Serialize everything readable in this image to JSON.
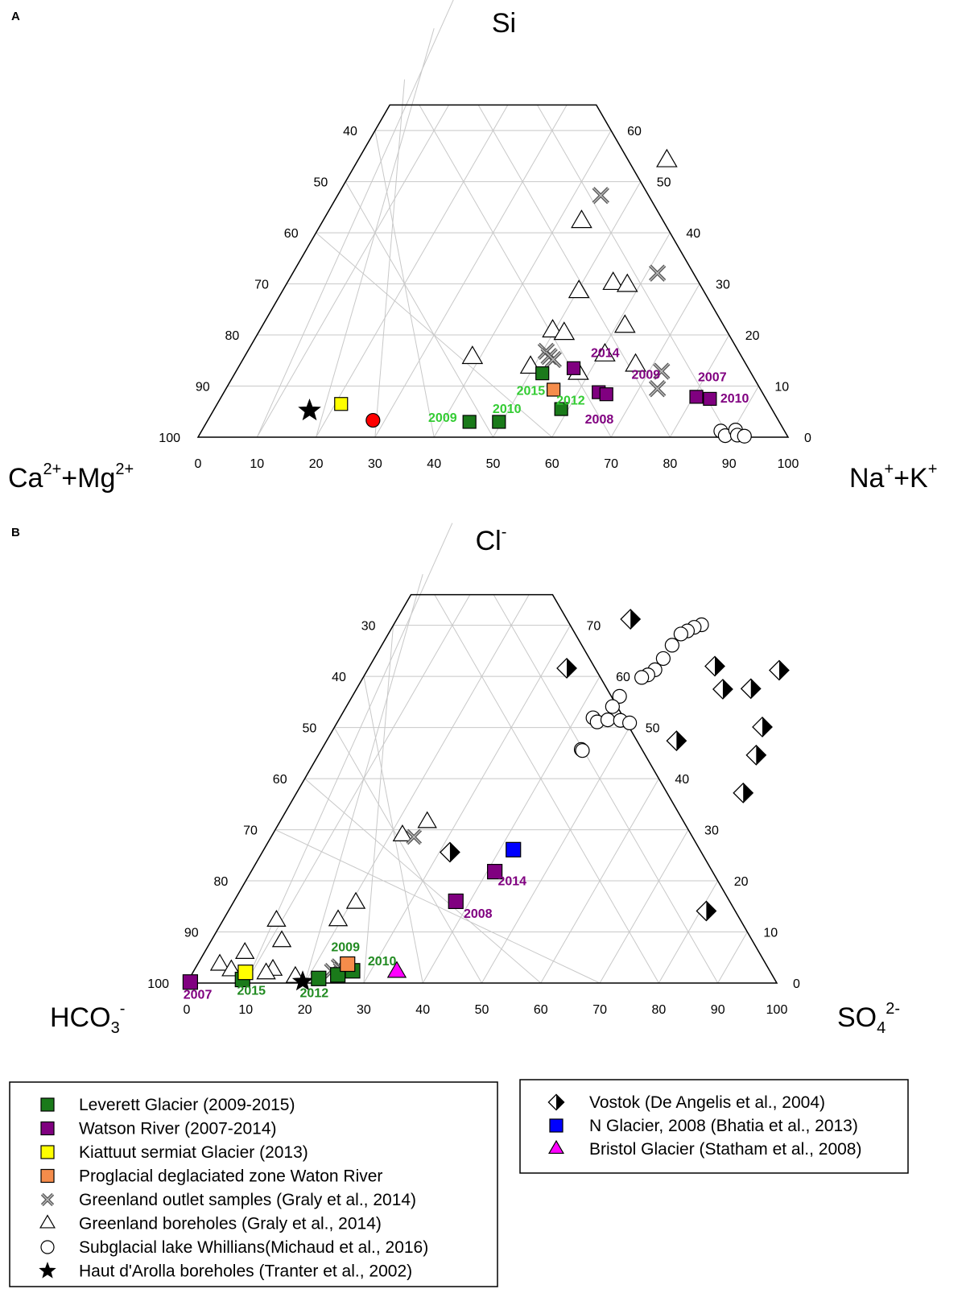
{
  "colors": {
    "leverett": "#1a7a1a",
    "watson": "#800080",
    "kiattuut": "#ffff00",
    "proglacial": "#f58c4b",
    "n_glacier": "#0000ff",
    "bristol": "#ff00ff",
    "red_point": "#ff0000",
    "ann_green": "#33cc33",
    "ann_green_b": "#228b22",
    "ann_purple": "#800080",
    "grid": "#c8c8c8"
  },
  "legend_left": [
    {
      "marker": "square",
      "color": "#1a7a1a",
      "label": "Leverett Glacier (2009-2015)"
    },
    {
      "marker": "square",
      "color": "#800080",
      "label": "Watson River (2007-2014)"
    },
    {
      "marker": "square",
      "color": "#ffff00",
      "label": "Kiattuut sermiat Glacier (2013)"
    },
    {
      "marker": "square",
      "color": "#f58c4b",
      "label": "Proglacial deglaciated zone Waton River"
    },
    {
      "marker": "cross",
      "color": "#666666",
      "label": "Greenland outlet samples (Graly et al., 2014)"
    },
    {
      "marker": "triangle",
      "color": "#ffffff",
      "label": "Greenland boreholes (Graly et al., 2014)"
    },
    {
      "marker": "circle",
      "color": "#ffffff",
      "label": "Subglacial lake Whillians(Michaud et al., 2016)"
    },
    {
      "marker": "star",
      "color": "#000000",
      "label": "Haut d'Arolla boreholes (Tranter et al., 2002)"
    }
  ],
  "legend_right": [
    {
      "marker": "halfdiamond",
      "color": "#000000",
      "label": "Vostok (De Angelis et al., 2004)"
    },
    {
      "marker": "square",
      "color": "#0000ff",
      "label": "N Glacier, 2008 (Bhatia et al., 2013)"
    },
    {
      "marker": "triangle",
      "color": "#ff00ff",
      "label": "Bristol Glacier (Statham et al., 2008)"
    }
  ],
  "chart_data": [
    {
      "type": "scatter",
      "panel": "A",
      "title": "Si",
      "left_label": {
        "main": "Ca",
        "sup1": "2+",
        "mid": "+Mg",
        "sup2": "2+"
      },
      "right_label": {
        "main": "Na",
        "sup1": "+",
        "mid": "+K",
        "sup2": "+"
      },
      "coords": "ternary truncated at apex: x = Na++K+ (%), h = Si (%)",
      "h_max": 65,
      "bottom_ticks": [
        0,
        10,
        20,
        30,
        40,
        50,
        60,
        70,
        80,
        90,
        100
      ],
      "left_ticks": [
        40,
        50,
        60,
        70,
        80,
        90,
        100
      ],
      "right_ticks": [
        0,
        10,
        20,
        30,
        40,
        50,
        60
      ],
      "points": [
        {
          "m": "square",
          "c": "#1a7a1a",
          "x": 44.5,
          "h": 3
        },
        {
          "m": "square",
          "c": "#1a7a1a",
          "x": 49.5,
          "h": 3
        },
        {
          "m": "square",
          "c": "#1a7a1a",
          "x": 58.8,
          "h": 5.5
        },
        {
          "m": "square",
          "c": "#1a7a1a",
          "x": 52.1,
          "h": 12.5
        },
        {
          "m": "square",
          "c": "#800080",
          "x": 56.9,
          "h": 13.5
        },
        {
          "m": "square",
          "c": "#800080",
          "x": 63.5,
          "h": 8.8
        },
        {
          "m": "square",
          "c": "#800080",
          "x": 65,
          "h": 8.4
        },
        {
          "m": "square",
          "c": "#800080",
          "x": 80.5,
          "h": 7.9
        },
        {
          "m": "square",
          "c": "#800080",
          "x": 83,
          "h": 7.5
        },
        {
          "m": "square",
          "c": "#f58c4b",
          "x": 55.6,
          "h": 9.3
        },
        {
          "m": "square",
          "c": "#ffff00",
          "x": 21,
          "h": 6.5
        },
        {
          "m": "circle",
          "c": "#ff0000",
          "x": 28,
          "h": 3.3
        },
        {
          "m": "star",
          "c": "#000000",
          "x": 16.3,
          "h": 5.2
        },
        {
          "m": "cross",
          "c": "#666666",
          "x": 44.6,
          "h": 47.3
        },
        {
          "m": "cross",
          "c": "#666666",
          "x": 61.8,
          "h": 32.1
        },
        {
          "m": "cross",
          "c": "#666666",
          "x": 72.1,
          "h": 12.9
        },
        {
          "m": "cross",
          "c": "#666666",
          "x": 73.1,
          "h": 9.5
        },
        {
          "m": "cross",
          "c": "#666666",
          "x": 50.6,
          "h": 16.8
        },
        {
          "m": "cross",
          "c": "#666666",
          "x": 51.6,
          "h": 15.8
        },
        {
          "m": "cross",
          "c": "#666666",
          "x": 52.6,
          "h": 15.2
        },
        {
          "m": "triangle",
          "c": "#ffffff",
          "x": 52.4,
          "h": 54.1
        },
        {
          "m": "triangle",
          "c": "#ffffff",
          "x": 43.9,
          "h": 42.2
        },
        {
          "m": "triangle",
          "c": "#ffffff",
          "x": 55.3,
          "h": 30.1
        },
        {
          "m": "triangle",
          "c": "#ffffff",
          "x": 57.9,
          "h": 29.7
        },
        {
          "m": "triangle",
          "c": "#ffffff",
          "x": 50.3,
          "h": 28.5
        },
        {
          "m": "triangle",
          "c": "#ffffff",
          "x": 49.7,
          "h": 20.8
        },
        {
          "m": "triangle",
          "c": "#ffffff",
          "x": 51.9,
          "h": 20.3
        },
        {
          "m": "triangle",
          "c": "#ffffff",
          "x": 61.5,
          "h": 21.7
        },
        {
          "m": "triangle",
          "c": "#ffffff",
          "x": 38.7,
          "h": 15.6
        },
        {
          "m": "triangle",
          "c": "#ffffff",
          "x": 60.9,
          "h": 16.1
        },
        {
          "m": "triangle",
          "c": "#ffffff",
          "x": 67.1,
          "h": 14.1
        },
        {
          "m": "triangle",
          "c": "#ffffff",
          "x": 49.5,
          "h": 13.7
        },
        {
          "m": "triangle",
          "c": "#ffffff",
          "x": 58.2,
          "h": 12.5
        },
        {
          "m": "circle",
          "c": "#ffffff",
          "x": 88,
          "h": 1.2
        },
        {
          "m": "circle",
          "c": "#ffffff",
          "x": 89.2,
          "h": 0.3
        },
        {
          "m": "circle",
          "c": "#ffffff",
          "x": 90.4,
          "h": 1.4
        },
        {
          "m": "circle",
          "c": "#ffffff",
          "x": 91.2,
          "h": 0.4
        },
        {
          "m": "circle",
          "c": "#ffffff",
          "x": 92.5,
          "h": 0.2
        }
      ],
      "annotations": [
        {
          "text": "2009",
          "c": "#33cc33",
          "x": 39.5,
          "h": 3.9
        },
        {
          "text": "2010",
          "c": "#33cc33",
          "x": 49.5,
          "h": 5.7
        },
        {
          "text": "2015",
          "c": "#33cc33",
          "x": 51.8,
          "h": 9.2
        },
        {
          "text": "2012",
          "c": "#33cc33",
          "x": 59.5,
          "h": 7.3
        },
        {
          "text": "2014",
          "c": "#800080",
          "x": 60.7,
          "h": 16.6
        },
        {
          "text": "2009",
          "c": "#800080",
          "x": 69.7,
          "h": 12.4
        },
        {
          "text": "2008",
          "c": "#800080",
          "x": 66.2,
          "h": 3.6
        },
        {
          "text": "2007",
          "c": "#800080",
          "x": 81.2,
          "h": 11.9
        },
        {
          "text": "2010",
          "c": "#800080",
          "x": 87.1,
          "h": 7.7
        }
      ]
    },
    {
      "type": "scatter",
      "panel": "B",
      "title": "Cl",
      "title_sup": "-",
      "left_label": {
        "main": "HCO",
        "sub": "3",
        "sup": "-"
      },
      "right_label": {
        "main": "SO",
        "sub": "4",
        "sup": "2-"
      },
      "coords": "ternary truncated at apex: x = SO42- (%), h = Cl- (%)",
      "h_max": 76,
      "bottom_ticks": [
        0,
        10,
        20,
        30,
        40,
        50,
        60,
        70,
        80,
        90,
        100
      ],
      "left_ticks": [
        30,
        40,
        50,
        60,
        70,
        80,
        90,
        100
      ],
      "right_ticks": [
        0,
        10,
        20,
        30,
        40,
        50,
        60,
        70
      ],
      "points": [
        {
          "m": "halfdiamond",
          "c": "#000000",
          "x": 39.6,
          "h": 71.2
        },
        {
          "m": "halfdiamond",
          "c": "#000000",
          "x": 33.6,
          "h": 61.6
        },
        {
          "m": "halfdiamond",
          "c": "#000000",
          "x": 58.5,
          "h": 62
        },
        {
          "m": "halfdiamond",
          "c": "#000000",
          "x": 69.8,
          "h": 61.2
        },
        {
          "m": "halfdiamond",
          "c": "#000000",
          "x": 62.1,
          "h": 57.5
        },
        {
          "m": "halfdiamond",
          "c": "#000000",
          "x": 66.8,
          "h": 57.6
        },
        {
          "m": "halfdiamond",
          "c": "#000000",
          "x": 72.5,
          "h": 50.1
        },
        {
          "m": "halfdiamond",
          "c": "#000000",
          "x": 59.3,
          "h": 47.4
        },
        {
          "m": "halfdiamond",
          "c": "#000000",
          "x": 74.2,
          "h": 44.6
        },
        {
          "m": "halfdiamond",
          "c": "#000000",
          "x": 75.7,
          "h": 37.2
        },
        {
          "m": "halfdiamond",
          "c": "#000000",
          "x": 31.8,
          "h": 25.6
        },
        {
          "m": "halfdiamond",
          "c": "#000000",
          "x": 81,
          "h": 14.1
        },
        {
          "m": "square",
          "c": "#0000ff",
          "x": 42.3,
          "h": 26.1
        },
        {
          "m": "square",
          "c": "#800080",
          "x": 41.3,
          "h": 21.8
        },
        {
          "m": "square",
          "c": "#800080",
          "x": 37.6,
          "h": 16
        },
        {
          "m": "square",
          "c": "#800080",
          "x": 0.5,
          "h": 0.2
        },
        {
          "m": "square",
          "c": "#1a7a1a",
          "x": 9.1,
          "h": 0.7
        },
        {
          "m": "square",
          "c": "#1a7a1a",
          "x": 21.9,
          "h": 0.9
        },
        {
          "m": "square",
          "c": "#1a7a1a",
          "x": 24.8,
          "h": 1.6
        },
        {
          "m": "square",
          "c": "#1a7a1a",
          "x": 26.9,
          "h": 2.4
        },
        {
          "m": "square",
          "c": "#f58c4b",
          "x": 25.4,
          "h": 3.7
        },
        {
          "m": "square",
          "c": "#ffff00",
          "x": 8.9,
          "h": 2.1
        },
        {
          "m": "triangle",
          "c": "#ff00ff",
          "x": 34.5,
          "h": 2.2
        },
        {
          "m": "star",
          "c": "#000000",
          "x": 19.5,
          "h": 0.3
        },
        {
          "m": "cross",
          "c": "#666666",
          "x": 24.2,
          "h": 28.6
        },
        {
          "m": "cross",
          "c": "#666666",
          "x": 24.1,
          "h": 3.3
        },
        {
          "m": "cross",
          "c": "#666666",
          "x": 23.4,
          "h": 2.4
        },
        {
          "m": "cross",
          "c": "#666666",
          "x": 24.8,
          "h": 2.6
        },
        {
          "m": "triangle",
          "c": "#ffffff",
          "x": 25,
          "h": 31.5
        },
        {
          "m": "triangle",
          "c": "#ffffff",
          "x": 22.1,
          "h": 28.9
        },
        {
          "m": "triangle",
          "c": "#ffffff",
          "x": 20.8,
          "h": 15.7
        },
        {
          "m": "triangle",
          "c": "#ffffff",
          "x": 19.5,
          "h": 12.3
        },
        {
          "m": "triangle",
          "c": "#ffffff",
          "x": 9.1,
          "h": 12.2
        },
        {
          "m": "triangle",
          "c": "#ffffff",
          "x": 12,
          "h": 8.2
        },
        {
          "m": "triangle",
          "c": "#ffffff",
          "x": 6.9,
          "h": 5.9
        },
        {
          "m": "triangle",
          "c": "#ffffff",
          "x": 3.8,
          "h": 3.6
        },
        {
          "m": "triangle",
          "c": "#ffffff",
          "x": 6.3,
          "h": 2.5
        },
        {
          "m": "triangle",
          "c": "#ffffff",
          "x": 13.3,
          "h": 2.6
        },
        {
          "m": "triangle",
          "c": "#ffffff",
          "x": 12.5,
          "h": 1.9
        },
        {
          "m": "triangle",
          "c": "#ffffff",
          "x": 17.8,
          "h": 1.2
        },
        {
          "m": "circle",
          "c": "#ffffff",
          "x": 52.2,
          "h": 70.1
        },
        {
          "m": "circle",
          "c": "#ffffff",
          "x": 51.2,
          "h": 69.6
        },
        {
          "m": "circle",
          "c": "#ffffff",
          "x": 50.4,
          "h": 68.9
        },
        {
          "m": "circle",
          "c": "#ffffff",
          "x": 49.6,
          "h": 68.3
        },
        {
          "m": "circle",
          "c": "#ffffff",
          "x": 49.2,
          "h": 66.1
        },
        {
          "m": "circle",
          "c": "#ffffff",
          "x": 49,
          "h": 63.5
        },
        {
          "m": "circle",
          "c": "#ffffff",
          "x": 48.7,
          "h": 61.3
        },
        {
          "m": "circle",
          "c": "#ffffff",
          "x": 48,
          "h": 60.3
        },
        {
          "m": "circle",
          "c": "#ffffff",
          "x": 47.2,
          "h": 59.8
        },
        {
          "m": "circle",
          "c": "#ffffff",
          "x": 45.3,
          "h": 56.1
        },
        {
          "m": "circle",
          "c": "#ffffff",
          "x": 45.1,
          "h": 54.1
        },
        {
          "m": "circle",
          "c": "#ffffff",
          "x": 42.9,
          "h": 51.9
        },
        {
          "m": "circle",
          "c": "#ffffff",
          "x": 44,
          "h": 51.1
        },
        {
          "m": "circle",
          "c": "#ffffff",
          "x": 45.6,
          "h": 51.5
        },
        {
          "m": "circle",
          "c": "#ffffff",
          "x": 47.8,
          "h": 51.4
        },
        {
          "m": "circle",
          "c": "#ffffff",
          "x": 49.6,
          "h": 50.9
        },
        {
          "m": "circle",
          "c": "#ffffff",
          "x": 44,
          "h": 45.7
        },
        {
          "m": "circle",
          "c": "#ffffff",
          "x": 44.3,
          "h": 45.5
        }
      ],
      "annotations": [
        {
          "text": "2014",
          "c": "#800080",
          "x": 45.1,
          "h": 20.1
        },
        {
          "text": "2008",
          "c": "#800080",
          "x": 42.5,
          "h": 13.7
        },
        {
          "text": "2007",
          "c": "#800080",
          "x": 2.9,
          "h": -2.1
        },
        {
          "text": "2015",
          "c": "#228b22",
          "x": 11.6,
          "h": -1.3
        },
        {
          "text": "2012",
          "c": "#228b22",
          "x": 22.5,
          "h": -1.8
        },
        {
          "text": "2009",
          "c": "#228b22",
          "x": 23.3,
          "h": 7.2
        },
        {
          "text": "2010",
          "c": "#228b22",
          "x": 30.9,
          "h": 4.4
        }
      ]
    }
  ]
}
